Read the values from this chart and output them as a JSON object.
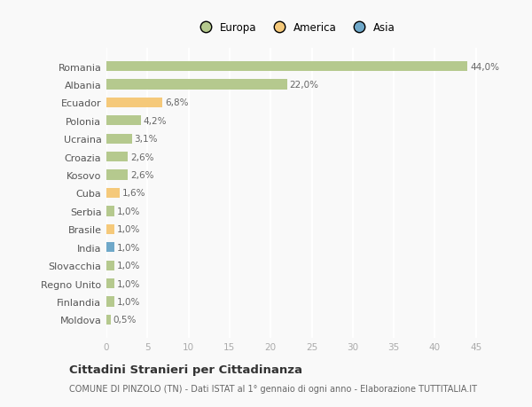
{
  "countries": [
    "Romania",
    "Albania",
    "Ecuador",
    "Polonia",
    "Ucraina",
    "Croazia",
    "Kosovo",
    "Cuba",
    "Serbia",
    "Brasile",
    "India",
    "Slovacchia",
    "Regno Unito",
    "Finlandia",
    "Moldova"
  ],
  "values": [
    44.0,
    22.0,
    6.8,
    4.2,
    3.1,
    2.6,
    2.6,
    1.6,
    1.0,
    1.0,
    1.0,
    1.0,
    1.0,
    1.0,
    0.5
  ],
  "labels": [
    "44,0%",
    "22,0%",
    "6,8%",
    "4,2%",
    "3,1%",
    "2,6%",
    "2,6%",
    "1,6%",
    "1,0%",
    "1,0%",
    "1,0%",
    "1,0%",
    "1,0%",
    "1,0%",
    "0,5%"
  ],
  "colors": [
    "#b5c98e",
    "#b5c98e",
    "#f5c97a",
    "#b5c98e",
    "#b5c98e",
    "#b5c98e",
    "#b5c98e",
    "#f5c97a",
    "#b5c98e",
    "#f5c97a",
    "#6fa8c9",
    "#b5c98e",
    "#b5c98e",
    "#b5c98e",
    "#b5c98e"
  ],
  "legend_labels": [
    "Europa",
    "America",
    "Asia"
  ],
  "legend_colors": [
    "#b5c98e",
    "#f5c97a",
    "#6fa8c9"
  ],
  "title": "Cittadini Stranieri per Cittadinanza",
  "subtitle": "COMUNE DI PINZOLO (TN) - Dati ISTAT al 1° gennaio di ogni anno - Elaborazione TUTTITALIA.IT",
  "xlim": [
    0,
    46
  ],
  "xticks": [
    0,
    5,
    10,
    15,
    20,
    25,
    30,
    35,
    40,
    45
  ],
  "bg_color": "#f9f9f9",
  "grid_color": "#ffffff",
  "bar_height": 0.55
}
